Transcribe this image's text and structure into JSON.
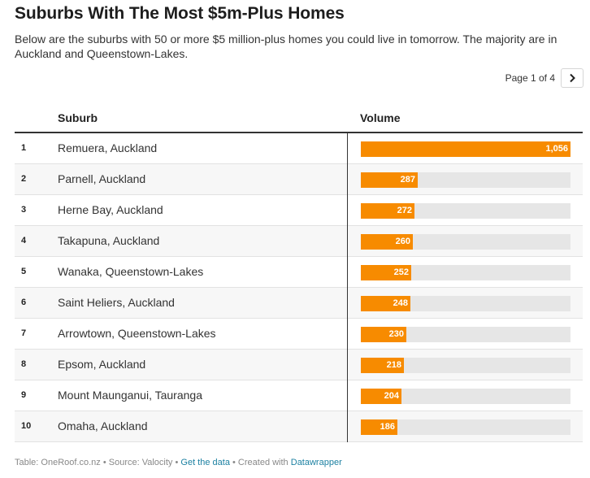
{
  "title": "Suburbs With The Most $5m-Plus Homes",
  "description": "Below are the suburbs with 50 or more $5 million-plus homes you could live in tomorrow. The majority are in Auckland and Queenstown-Lakes.",
  "pagination": {
    "label": "Page 1 of 4",
    "next_icon": "chevron-right-icon"
  },
  "colors": {
    "bar": "#f78b00",
    "track": "#e6e6e6",
    "link": "#1d81a2"
  },
  "chart_data": {
    "type": "table",
    "columns": [
      "",
      "Suburb",
      "Volume"
    ],
    "max_value": 1056,
    "rows": [
      {
        "rank": "1",
        "suburb": "Remuera, Auckland",
        "volume": 1056,
        "volume_label": "1,056"
      },
      {
        "rank": "2",
        "suburb": "Parnell, Auckland",
        "volume": 287,
        "volume_label": "287"
      },
      {
        "rank": "3",
        "suburb": "Herne Bay, Auckland",
        "volume": 272,
        "volume_label": "272"
      },
      {
        "rank": "4",
        "suburb": "Takapuna, Auckland",
        "volume": 260,
        "volume_label": "260"
      },
      {
        "rank": "5",
        "suburb": "Wanaka, Queenstown-Lakes",
        "volume": 252,
        "volume_label": "252"
      },
      {
        "rank": "6",
        "suburb": "Saint Heliers, Auckland",
        "volume": 248,
        "volume_label": "248"
      },
      {
        "rank": "7",
        "suburb": "Arrowtown, Queenstown-Lakes",
        "volume": 230,
        "volume_label": "230"
      },
      {
        "rank": "8",
        "suburb": "Epsom, Auckland",
        "volume": 218,
        "volume_label": "218"
      },
      {
        "rank": "9",
        "suburb": "Mount Maunganui, Tauranga",
        "volume": 204,
        "volume_label": "204"
      },
      {
        "rank": "10",
        "suburb": "Omaha, Auckland",
        "volume": 186,
        "volume_label": "186"
      }
    ]
  },
  "footer": {
    "source": "Table: OneRoof.co.nz • Source: Valocity •",
    "get_data": "Get the data",
    "sep": "•",
    "created": "Created with",
    "datawrapper": "Datawrapper"
  }
}
